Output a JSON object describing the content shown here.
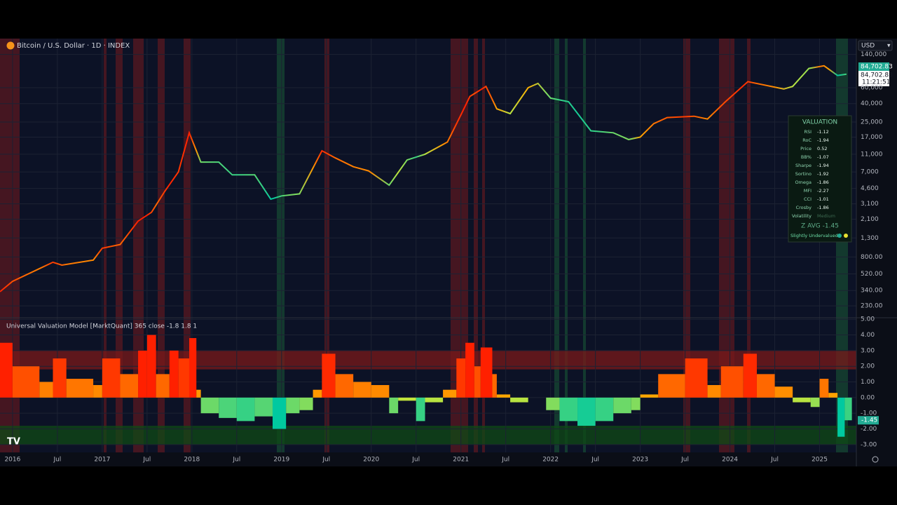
{
  "header": {
    "currency": "USD",
    "close_label": "84,702.83",
    "last_label": "84,702.83",
    "countdown": "11:21:51"
  },
  "chart_data": [
    {
      "type": "line",
      "title": "Bitcoin / U.S. Dollar · 1D · INDEX",
      "log_scale": true,
      "grid": true,
      "xlim": [
        2015.86,
        2025.41
      ],
      "ylim": [
        170,
        210000
      ],
      "yticks": [
        {
          "value": 140000,
          "label": "140,000"
        },
        {
          "value": 60000,
          "label": "60,000"
        },
        {
          "value": 40000,
          "label": "40,000"
        },
        {
          "value": 25000,
          "label": "25,000"
        },
        {
          "value": 17000,
          "label": "17,000"
        },
        {
          "value": 11000,
          "label": "11,000"
        },
        {
          "value": 7000,
          "label": "7,000"
        },
        {
          "value": 4600,
          "label": "4,600"
        },
        {
          "value": 3100,
          "label": "3,100"
        },
        {
          "value": 2100,
          "label": "2,100"
        },
        {
          "value": 1300,
          "label": "1,300"
        },
        {
          "value": 800,
          "label": "800.00"
        },
        {
          "value": 520,
          "label": "520.00"
        },
        {
          "value": 340,
          "label": "340.00"
        },
        {
          "value": 230,
          "label": "230.00"
        }
      ],
      "x": [
        2015.86,
        2016.0,
        2016.45,
        2016.55,
        2016.9,
        2017.0,
        2017.2,
        2017.4,
        2017.55,
        2017.7,
        2017.85,
        2017.97,
        2018.1,
        2018.3,
        2018.45,
        2018.7,
        2018.88,
        2019.0,
        2019.2,
        2019.45,
        2019.6,
        2019.8,
        2019.97,
        2020.2,
        2020.4,
        2020.6,
        2020.85,
        2021.0,
        2021.1,
        2021.28,
        2021.4,
        2021.55,
        2021.75,
        2021.86,
        2022.0,
        2022.2,
        2022.45,
        2022.7,
        2022.87,
        2023.0,
        2023.15,
        2023.3,
        2023.6,
        2023.75,
        2023.95,
        2024.2,
        2024.6,
        2024.7,
        2024.88,
        2025.05,
        2025.2,
        2025.3
      ],
      "values": [
        330,
        430,
        700,
        650,
        740,
        1000,
        1100,
        2000,
        2500,
        4300,
        7000,
        19000,
        9000,
        9000,
        6500,
        6500,
        3500,
        3800,
        4000,
        12000,
        10000,
        8000,
        7200,
        5000,
        9500,
        11000,
        15000,
        30000,
        48000,
        62000,
        35000,
        31000,
        60000,
        67000,
        46000,
        42000,
        20000,
        19000,
        16000,
        17000,
        24000,
        28000,
        29000,
        27000,
        42000,
        70000,
        58000,
        62000,
        98000,
        105000,
        82000,
        84700
      ]
    },
    {
      "type": "bar",
      "title": "Universal Valuation Model [MarktQuant] 365 close -1.8 1.8 1",
      "grid": true,
      "xlim": [
        2015.86,
        2025.41
      ],
      "ylim": [
        -3.5,
        5.1
      ],
      "yticks": [
        {
          "value": 5,
          "label": "5.00"
        },
        {
          "value": 4,
          "label": "4.00"
        },
        {
          "value": 3,
          "label": "3.00"
        },
        {
          "value": 2,
          "label": "2.00"
        },
        {
          "value": 1,
          "label": "1.00"
        },
        {
          "value": 0,
          "label": "0.00"
        },
        {
          "value": -1,
          "label": "-1.00"
        },
        {
          "value": -2,
          "label": "-2.00"
        },
        {
          "value": -3,
          "label": "-3.00"
        }
      ],
      "xticks": [
        {
          "value": 2016,
          "label": "2016"
        },
        {
          "value": 2016.5,
          "label": "Jul"
        },
        {
          "value": 2017,
          "label": "2017"
        },
        {
          "value": 2017.5,
          "label": "Jul"
        },
        {
          "value": 2018,
          "label": "2018"
        },
        {
          "value": 2018.5,
          "label": "Jul"
        },
        {
          "value": 2019,
          "label": "2019"
        },
        {
          "value": 2019.5,
          "label": "Jul"
        },
        {
          "value": 2020,
          "label": "2020"
        },
        {
          "value": 2020.5,
          "label": "Jul"
        },
        {
          "value": 2021,
          "label": "2021"
        },
        {
          "value": 2021.5,
          "label": "Jul"
        },
        {
          "value": 2022,
          "label": "2022"
        },
        {
          "value": 2022.5,
          "label": "Jul"
        },
        {
          "value": 2023,
          "label": "2023"
        },
        {
          "value": 2023.5,
          "label": "Jul"
        },
        {
          "value": 2024,
          "label": "2024"
        },
        {
          "value": 2024.5,
          "label": "Jul"
        },
        {
          "value": 2025,
          "label": "2025"
        }
      ],
      "zones": [
        {
          "from": 1.8,
          "to": 3,
          "color": "#7a1a1a"
        },
        {
          "from": -1.8,
          "to": -3,
          "color": "#0f4a16"
        }
      ],
      "palette": [
        "#ff2000",
        "#ffb000",
        "#d8e830",
        "#00c9a0"
      ],
      "last_value_label": "-1.45",
      "x": [
        2015.86,
        2016.0,
        2016.3,
        2016.45,
        2016.6,
        2016.9,
        2017.0,
        2017.2,
        2017.4,
        2017.5,
        2017.6,
        2017.75,
        2017.85,
        2017.97,
        2018.05,
        2018.1,
        2018.3,
        2018.5,
        2018.7,
        2018.9,
        2019.05,
        2019.2,
        2019.35,
        2019.45,
        2019.6,
        2019.8,
        2020.0,
        2020.2,
        2020.3,
        2020.5,
        2020.6,
        2020.8,
        2020.95,
        2021.05,
        2021.15,
        2021.22,
        2021.35,
        2021.4,
        2021.55,
        2021.75,
        2021.95,
        2022.1,
        2022.3,
        2022.5,
        2022.7,
        2022.9,
        2023.0,
        2023.2,
        2023.5,
        2023.75,
        2023.9,
        2024.15,
        2024.3,
        2024.5,
        2024.7,
        2024.9,
        2025.0,
        2025.1,
        2025.2,
        2025.28
      ],
      "values": [
        3.5,
        2.0,
        1.0,
        2.5,
        1.2,
        0.8,
        2.5,
        1.5,
        3.0,
        4.0,
        1.5,
        3.0,
        2.5,
        3.8,
        0.5,
        -1.0,
        -1.3,
        -1.5,
        -1.2,
        -2.0,
        -1.0,
        -0.8,
        0.5,
        2.8,
        1.5,
        1.0,
        0.8,
        -1.0,
        -0.2,
        -1.5,
        -0.3,
        0.5,
        2.5,
        3.5,
        2.0,
        3.2,
        1.5,
        0.2,
        -0.3,
        0.0,
        -0.8,
        -1.5,
        -1.8,
        -1.5,
        -1.0,
        -0.8,
        0.2,
        1.5,
        2.5,
        0.8,
        2.0,
        2.8,
        1.5,
        0.7,
        -0.3,
        -0.6,
        1.2,
        0.3,
        -2.5,
        -1.45
      ]
    }
  ],
  "valuation": {
    "title": "VALUATION",
    "rows": [
      [
        "RSI",
        "-1.12"
      ],
      [
        "RoC",
        "-1.94"
      ],
      [
        "Price",
        "0.52"
      ],
      [
        "BB%",
        "-1.07"
      ],
      [
        "Sharpe",
        "-1.94"
      ],
      [
        "Sortino",
        "-1.92"
      ],
      [
        "Omega",
        "-1.86"
      ],
      [
        "MFI",
        "-2.27"
      ],
      [
        "CCI",
        "-1.01"
      ],
      [
        "Crosby",
        "-1.86"
      ],
      [
        "Volatility",
        "Medium"
      ]
    ],
    "z_avg": "Z AVG -1.45",
    "status": "Slightly Undervalued"
  }
}
